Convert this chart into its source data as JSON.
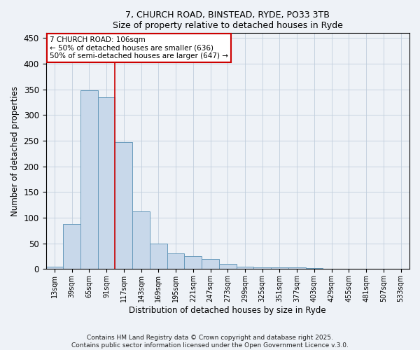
{
  "title1": "7, CHURCH ROAD, BINSTEAD, RYDE, PO33 3TB",
  "title2": "Size of property relative to detached houses in Ryde",
  "xlabel": "Distribution of detached houses by size in Ryde",
  "ylabel": "Number of detached properties",
  "categories": [
    "13sqm",
    "39sqm",
    "65sqm",
    "91sqm",
    "117sqm",
    "143sqm",
    "169sqm",
    "195sqm",
    "221sqm",
    "247sqm",
    "273sqm",
    "299sqm",
    "325sqm",
    "351sqm",
    "377sqm",
    "403sqm",
    "429sqm",
    "455sqm",
    "481sqm",
    "507sqm",
    "533sqm"
  ],
  "values": [
    5,
    88,
    348,
    335,
    247,
    112,
    49,
    31,
    25,
    20,
    10,
    4,
    3,
    3,
    3,
    2,
    0,
    1,
    0,
    0,
    1
  ],
  "bar_color": "#c8d8ea",
  "bar_edge_color": "#6699bb",
  "ylim": [
    0,
    460
  ],
  "yticks": [
    0,
    50,
    100,
    150,
    200,
    250,
    300,
    350,
    400,
    450
  ],
  "property_line_x": 3.5,
  "annotation_line1": "7 CHURCH ROAD: 106sqm",
  "annotation_line2": "← 50% of detached houses are smaller (636)",
  "annotation_line3": "50% of semi-detached houses are larger (647) →",
  "annotation_box_color": "#ffffff",
  "annotation_box_edge": "#cc0000",
  "footer": "Contains HM Land Registry data © Crown copyright and database right 2025.\nContains public sector information licensed under the Open Government Licence v.3.0.",
  "background_color": "#eef2f7",
  "grid_color": "#c0cedc"
}
